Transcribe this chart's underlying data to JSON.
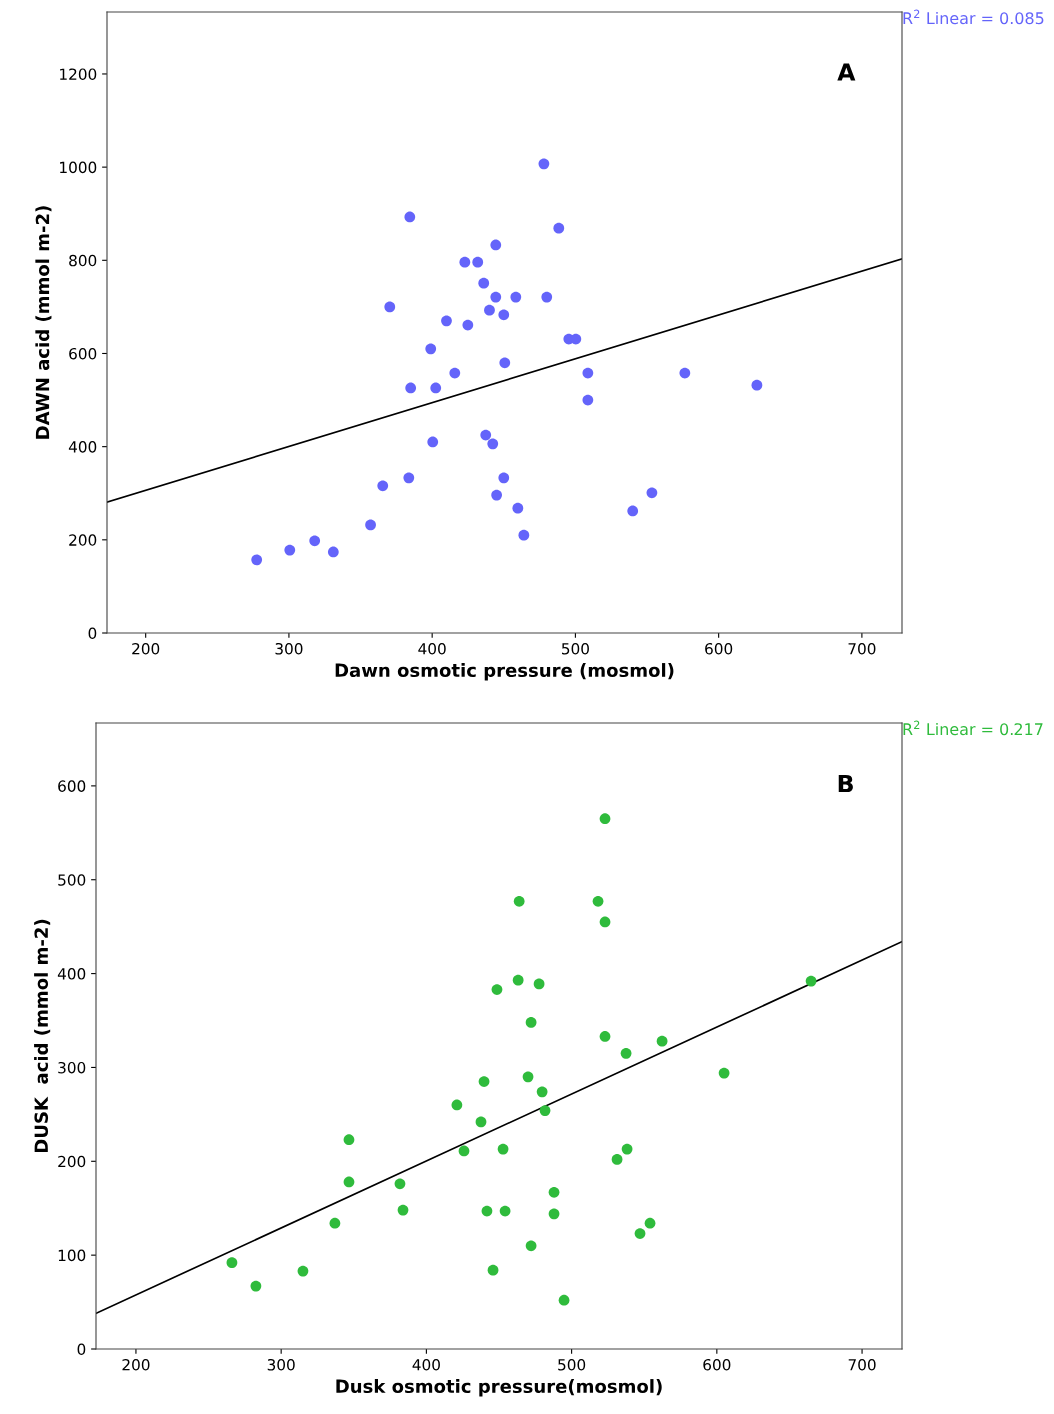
{
  "chart_data": [
    {
      "type": "scatter",
      "xlabel": "Dawn osmotic pressure (mosmol)",
      "ylabel": "DAWN acid (mmol m-2)",
      "annotations": [
        "R$^{2}$ Linear = 0.085",
        "A"
      ],
      "xlim": [
        173,
        728
      ],
      "ylim": [
        0,
        1333
      ],
      "xticks": [
        200,
        300,
        400,
        500,
        600,
        700
      ],
      "yticks": [
        0,
        200,
        400,
        600,
        800,
        1000,
        1200
      ],
      "grid": false,
      "legend": false,
      "series": [
        {
          "marker": "circle",
          "color": "#6464fa",
          "x": [
            277.5,
            300.6,
            318,
            331,
            357,
            365.5,
            383.7,
            370.4,
            384.4,
            385,
            402.5,
            399,
            400.4,
            410,
            415.8,
            422.8,
            424.9,
            431.8,
            436,
            440,
            444.4,
            444.4,
            450,
            458.4,
            437.4,
            442.3,
            450.7,
            450,
            445,
            459.8,
            464,
            478,
            480,
            488.4,
            495.4,
            500.3,
            508.7,
            508.7,
            540,
            553.4,
            576.4,
            626.7
          ],
          "values": [
            157,
            178,
            198,
            174,
            232,
            316,
            333,
            700,
            893,
            526,
            526,
            610,
            410,
            670,
            558,
            796,
            661,
            796,
            751,
            693,
            833,
            721,
            683,
            721,
            425,
            406,
            580,
            333,
            296,
            268,
            210,
            1007,
            721,
            869,
            631,
            631,
            558,
            500,
            262,
            301,
            558,
            532
          ]
        },
        {
          "type": "line",
          "color": "#000000",
          "line_style": "solid",
          "x": [
            173,
            728
          ],
          "values": [
            281,
            803
          ]
        }
      ]
    },
    {
      "type": "scatter",
      "xlabel": "Dusk osmotic pressure(mosmol)",
      "ylabel": "DUSK  acid (mmol m-2)",
      "annotations": [
        "R$^{2}$ Linear = 0.217",
        "B"
      ],
      "xlim": [
        172.5,
        727.5
      ],
      "ylim": [
        0,
        667
      ],
      "xticks": [
        200,
        300,
        400,
        500,
        600,
        700
      ],
      "yticks": [
        0,
        100,
        200,
        300,
        400,
        500,
        600
      ],
      "grid": false,
      "legend": false,
      "series": [
        {
          "marker": "circle",
          "color": "#2fbb3c",
          "x": [
            266.1,
            282.6,
            315,
            337,
            346.7,
            346.7,
            381.8,
            383.9,
            421,
            425.9,
            437.6,
            439.7,
            441.7,
            445.9,
            448.6,
            452.8,
            454.2,
            463.2,
            463.9,
            472.1,
            472.1,
            470,
            477.6,
            479.7,
            481.7,
            487.9,
            487.9,
            494.8,
            518.2,
            523,
            523,
            523,
            531.3,
            538.2,
            537.5,
            547.1,
            554,
            562.3,
            605,
            664.9
          ],
          "values": [
            92,
            67,
            83,
            134,
            223,
            178,
            176,
            148,
            260,
            211,
            242,
            285,
            147,
            84,
            383,
            213,
            147,
            393,
            477,
            348,
            110,
            290,
            389,
            274,
            254,
            167,
            144,
            52,
            477,
            565,
            455,
            333,
            202,
            213,
            315,
            123,
            134,
            328,
            294,
            392
          ]
        },
        {
          "type": "line",
          "color": "#000000",
          "line_style": "solid",
          "x": [
            172.5,
            727.5
          ],
          "values": [
            38,
            434
          ]
        }
      ]
    }
  ]
}
